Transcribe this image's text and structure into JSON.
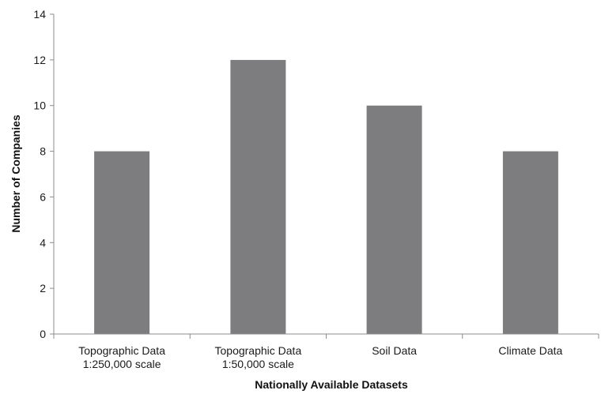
{
  "chart_data": {
    "type": "bar",
    "categories": [
      [
        "Topographic Data",
        "1:250,000 scale"
      ],
      [
        "Topographic Data",
        "1:50,000 scale"
      ],
      [
        "Soil Data"
      ],
      [
        "Climate Data"
      ]
    ],
    "values": [
      8,
      12,
      10,
      8
    ],
    "title": "",
    "xlabel": "Nationally Available Datasets",
    "ylabel": "Number of Companies",
    "ylim": [
      0,
      14
    ],
    "yticks": [
      0,
      2,
      4,
      6,
      8,
      10,
      12,
      14
    ],
    "grid": false,
    "legend": "none",
    "bar_color": "#7d7d80",
    "axis_color": "#8c8c8c"
  }
}
